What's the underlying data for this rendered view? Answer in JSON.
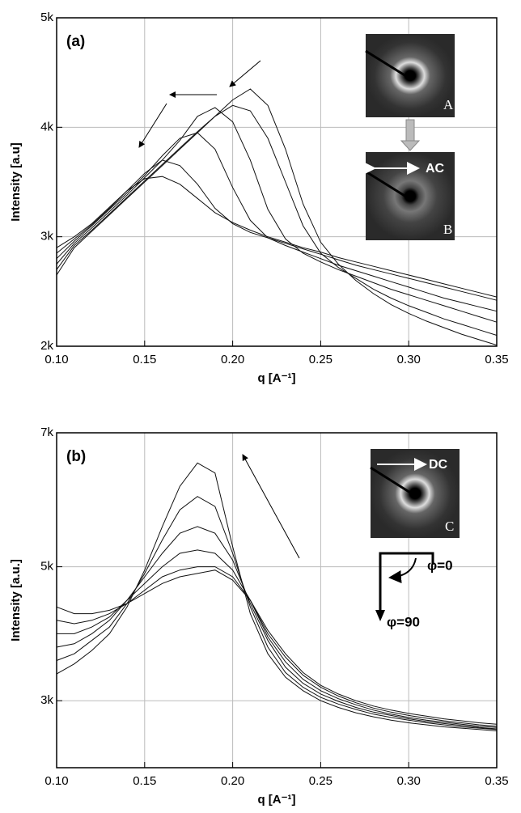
{
  "chart_data": [
    {
      "type": "line",
      "panel_label": "(a)",
      "y_label": "Intensity [a.u]",
      "x_label": "q [A⁻¹]",
      "annotations": [
        "A",
        "B",
        "AC"
      ],
      "xlim": [
        0.1,
        0.35
      ],
      "ylim": [
        2000,
        5000
      ],
      "grid": true,
      "xticks": [
        {
          "value": 0.1,
          "label": "0.10"
        },
        0.15,
        {
          "value": 0.2,
          "label": "0.20"
        },
        0.25,
        {
          "value": 0.3,
          "label": "0.30"
        },
        0.35
      ],
      "yticks": [
        {
          "value": 2000,
          "label": "2k"
        },
        {
          "value": 3000,
          "label": "3k"
        },
        {
          "value": 4000,
          "label": "4k"
        },
        {
          "value": 5000,
          "label": "5k"
        }
      ],
      "x": [
        0.1,
        0.11,
        0.12,
        0.13,
        0.14,
        0.15,
        0.16,
        0.17,
        0.18,
        0.19,
        0.2,
        0.21,
        0.22,
        0.23,
        0.24,
        0.25,
        0.26,
        0.27,
        0.28,
        0.29,
        0.3,
        0.31,
        0.32,
        0.33,
        0.34,
        0.35
      ],
      "series": [
        {
          "color": "#111111",
          "values": [
            2650,
            2900,
            3050,
            3200,
            3350,
            3500,
            3650,
            3800,
            3950,
            4100,
            4250,
            4350,
            4200,
            3800,
            3300,
            2950,
            2750,
            2600,
            2480,
            2380,
            2300,
            2230,
            2170,
            2110,
            2060,
            2010
          ]
        },
        {
          "color": "#111111",
          "values": [
            2700,
            2920,
            3060,
            3210,
            3360,
            3510,
            3660,
            3810,
            3960,
            4100,
            4200,
            4150,
            3900,
            3500,
            3100,
            2850,
            2720,
            2620,
            2520,
            2440,
            2370,
            2310,
            2250,
            2200,
            2150,
            2100
          ]
        },
        {
          "color": "#111111",
          "values": [
            2750,
            2940,
            3080,
            3230,
            3380,
            3540,
            3700,
            3880,
            4100,
            4180,
            4050,
            3700,
            3250,
            2980,
            2850,
            2770,
            2700,
            2640,
            2580,
            2520,
            2470,
            2420,
            2370,
            2320,
            2270,
            2220
          ]
        },
        {
          "color": "#111111",
          "values": [
            2800,
            2960,
            3100,
            3250,
            3400,
            3560,
            3740,
            3900,
            3950,
            3800,
            3450,
            3150,
            2990,
            2920,
            2860,
            2800,
            2740,
            2690,
            2640,
            2590,
            2540,
            2490,
            2440,
            2400,
            2360,
            2320
          ]
        },
        {
          "color": "#111111",
          "values": [
            2850,
            2980,
            3110,
            3260,
            3420,
            3580,
            3700,
            3650,
            3480,
            3260,
            3120,
            3040,
            2990,
            2940,
            2890,
            2840,
            2790,
            2740,
            2700,
            2660,
            2620,
            2580,
            2540,
            2500,
            2460,
            2420
          ]
        },
        {
          "color": "#111111",
          "values": [
            2900,
            3000,
            3120,
            3270,
            3420,
            3530,
            3550,
            3480,
            3350,
            3220,
            3130,
            3060,
            3000,
            2950,
            2900,
            2860,
            2810,
            2770,
            2730,
            2690,
            2650,
            2610,
            2570,
            2530,
            2490,
            2450
          ]
        }
      ]
    },
    {
      "type": "line",
      "panel_label": "(b)",
      "y_label": "Intensity [a.u.]",
      "x_label": "q [A⁻¹]",
      "annotations": [
        "C",
        "DC",
        "φ=0",
        "φ=90"
      ],
      "xlim": [
        0.1,
        0.35
      ],
      "ylim": [
        2000,
        7000
      ],
      "grid": true,
      "xticks": [
        {
          "value": 0.1,
          "label": "0.10"
        },
        0.15,
        {
          "value": 0.2,
          "label": "0.20"
        },
        0.25,
        {
          "value": 0.3,
          "label": "0.30"
        },
        0.35
      ],
      "yticks": [
        {
          "value": 3000,
          "label": "3k"
        },
        {
          "value": 5000,
          "label": "5k"
        },
        {
          "value": 7000,
          "label": "7k"
        }
      ],
      "x": [
        0.1,
        0.11,
        0.12,
        0.13,
        0.14,
        0.15,
        0.16,
        0.17,
        0.18,
        0.19,
        0.2,
        0.21,
        0.22,
        0.23,
        0.24,
        0.25,
        0.26,
        0.27,
        0.28,
        0.29,
        0.3,
        0.31,
        0.32,
        0.33,
        0.34,
        0.35
      ],
      "series": [
        {
          "color": "#111111",
          "values": [
            3400,
            3550,
            3750,
            4000,
            4400,
            4950,
            5600,
            6200,
            6550,
            6400,
            5300,
            4300,
            3700,
            3350,
            3150,
            3000,
            2900,
            2820,
            2760,
            2710,
            2670,
            2640,
            2610,
            2590,
            2570,
            2550
          ]
        },
        {
          "color": "#111111",
          "values": [
            3600,
            3700,
            3900,
            4100,
            4450,
            4900,
            5400,
            5850,
            6050,
            5900,
            5200,
            4400,
            3800,
            3420,
            3200,
            3050,
            2950,
            2870,
            2800,
            2750,
            2710,
            2670,
            2640,
            2610,
            2590,
            2570
          ]
        },
        {
          "color": "#111111",
          "values": [
            3800,
            3850,
            4000,
            4200,
            4500,
            4850,
            5200,
            5500,
            5600,
            5500,
            5100,
            4450,
            3900,
            3500,
            3260,
            3100,
            2990,
            2900,
            2830,
            2780,
            2730,
            2690,
            2660,
            2630,
            2600,
            2580
          ]
        },
        {
          "color": "#111111",
          "values": [
            4000,
            4000,
            4100,
            4250,
            4500,
            4750,
            5000,
            5200,
            5250,
            5200,
            4950,
            4500,
            3950,
            3580,
            3320,
            3150,
            3030,
            2940,
            2860,
            2800,
            2750,
            2710,
            2680,
            2650,
            2620,
            2600
          ]
        },
        {
          "color": "#111111",
          "values": [
            4200,
            4150,
            4200,
            4300,
            4450,
            4650,
            4850,
            4950,
            5000,
            5000,
            4850,
            4500,
            4000,
            3650,
            3380,
            3200,
            3070,
            2970,
            2890,
            2830,
            2780,
            2740,
            2700,
            2670,
            2640,
            2620
          ]
        },
        {
          "color": "#111111",
          "values": [
            4400,
            4300,
            4300,
            4350,
            4450,
            4600,
            4750,
            4850,
            4900,
            4950,
            4800,
            4500,
            4050,
            3700,
            3420,
            3230,
            3100,
            3000,
            2920,
            2860,
            2810,
            2770,
            2730,
            2700,
            2670,
            2650
          ]
        }
      ]
    }
  ]
}
